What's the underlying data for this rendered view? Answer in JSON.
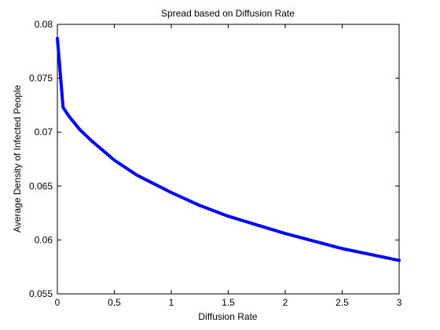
{
  "chart_data": {
    "type": "line",
    "title": "Spread based on Diffusion Rate",
    "xlabel": "Diffusion Rate",
    "ylabel": "Average Density of Infected People",
    "xlim": [
      0,
      3
    ],
    "ylim": [
      0.055,
      0.08
    ],
    "x_ticks": [
      "0",
      "0.5",
      "1",
      "1.5",
      "2",
      "2.5",
      "3"
    ],
    "y_ticks": [
      "0.055",
      "0.06",
      "0.065",
      "0.07",
      "0.075",
      "0.08"
    ],
    "grid": false,
    "legend": "none",
    "series": [
      {
        "color": "#0000ff",
        "x": [
          0,
          0.02,
          0.05,
          0.1,
          0.2,
          0.3,
          0.5,
          0.7,
          1.0,
          1.25,
          1.5,
          2.0,
          2.5,
          3.0
        ],
        "y": [
          0.0787,
          0.0762,
          0.0723,
          0.0715,
          0.0702,
          0.0692,
          0.0674,
          0.066,
          0.0644,
          0.0632,
          0.0622,
          0.0606,
          0.0592,
          0.0581
        ]
      }
    ]
  }
}
